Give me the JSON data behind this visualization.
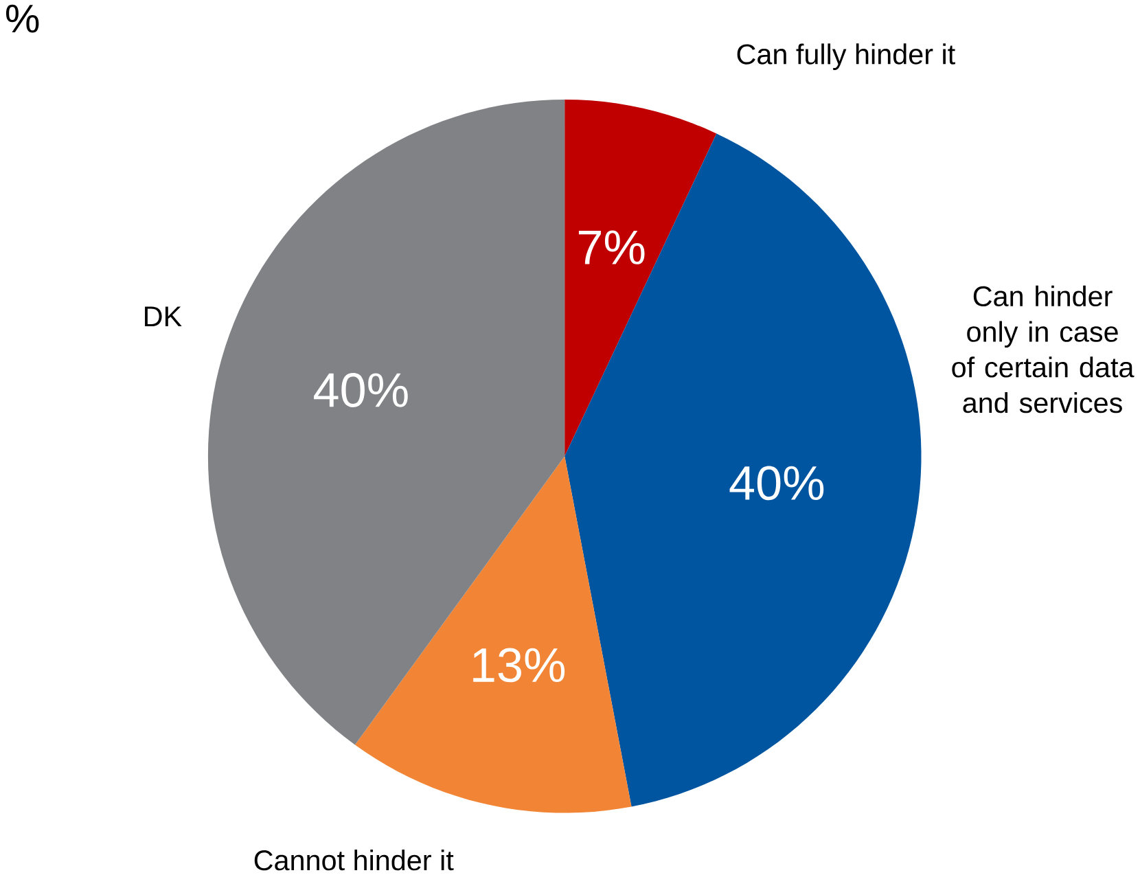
{
  "chart_data": {
    "type": "pie",
    "title": "%",
    "categories": [
      "Can fully hinder it",
      "Can hinder only in case of certain data and services",
      "Cannot hinder it",
      "DK"
    ],
    "values": [
      7,
      40,
      13,
      40
    ],
    "colors": [
      "#c00000",
      "#0055a0",
      "#f28535",
      "#808285"
    ],
    "value_labels": [
      "7%",
      "40%",
      "13%",
      "40%"
    ]
  }
}
